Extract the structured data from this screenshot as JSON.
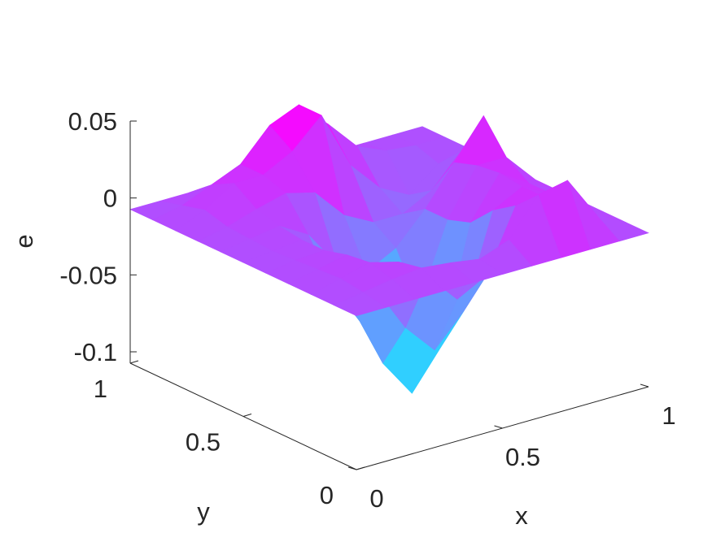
{
  "chart_data": {
    "type": "surface",
    "title": "",
    "xlabel": "x",
    "ylabel": "y",
    "zlabel": "e",
    "xlim": [
      0,
      1
    ],
    "ylim": [
      0,
      1
    ],
    "zlim": [
      -0.1,
      0.05
    ],
    "x_ticks": [
      {
        "value": 0,
        "label": "0"
      },
      {
        "value": 0.5,
        "label": "0.5"
      },
      {
        "value": 1,
        "label": "1"
      }
    ],
    "y_ticks": [
      {
        "value": 0,
        "label": "0"
      },
      {
        "value": 0.5,
        "label": "0.5"
      },
      {
        "value": 1,
        "label": "1"
      }
    ],
    "z_ticks": [
      {
        "value": 0.05,
        "label": "0.05"
      },
      {
        "value": 0,
        "label": "0"
      },
      {
        "value": -0.05,
        "label": "-0.05"
      },
      {
        "value": -0.1,
        "label": "-0.1"
      }
    ],
    "colormap": [
      "#00ffff",
      "#ff00ff"
    ],
    "grid": false,
    "x": [
      0,
      0.1,
      0.2,
      0.3,
      0.4,
      0.5,
      0.6,
      0.7,
      0.8,
      0.9,
      1
    ],
    "y": [
      0,
      0.1,
      0.2,
      0.3,
      0.4,
      0.5,
      0.6,
      0.7,
      0.8,
      0.9,
      1
    ],
    "z": [
      [
        0,
        0,
        0,
        0,
        0,
        0,
        0,
        0,
        0,
        0,
        0
      ],
      [
        0,
        0.003,
        0.006,
        0.008,
        0.006,
        0.003,
        0.01,
        0.034,
        0.038,
        0.01,
        0
      ],
      [
        0,
        0.005,
        0.01,
        0.005,
        -0.01,
        -0.03,
        -0.02,
        0.02,
        0.02,
        0.005,
        0
      ],
      [
        0,
        0.004,
        0.008,
        -0.02,
        -0.05,
        -0.07,
        -0.05,
        0.01,
        0.02,
        0.01,
        0
      ],
      [
        0,
        0.003,
        0.004,
        -0.04,
        -0.08,
        -0.105,
        -0.08,
        -0.005,
        0.022,
        0.01,
        0
      ],
      [
        0,
        0.002,
        0.004,
        -0.03,
        -0.06,
        -0.08,
        -0.06,
        -0.01,
        0.02,
        0.02,
        0
      ],
      [
        0,
        0.003,
        0.006,
        -0.005,
        -0.03,
        -0.04,
        -0.03,
        -0.01,
        0.015,
        0.04,
        0
      ],
      [
        0,
        0.004,
        0.01,
        0.015,
        0.01,
        -0.01,
        -0.02,
        -0.02,
        -0.01,
        0.01,
        0
      ],
      [
        0,
        0.008,
        0.02,
        0.02,
        0.03,
        0.048,
        0.01,
        -0.01,
        -0.02,
        -0.005,
        0
      ],
      [
        0,
        0.004,
        0.012,
        0.02,
        0.04,
        0.048,
        0.03,
        0.01,
        0.002,
        0,
        0
      ],
      [
        0,
        0,
        0,
        0,
        0,
        0,
        0,
        0,
        0,
        0,
        0
      ]
    ]
  }
}
